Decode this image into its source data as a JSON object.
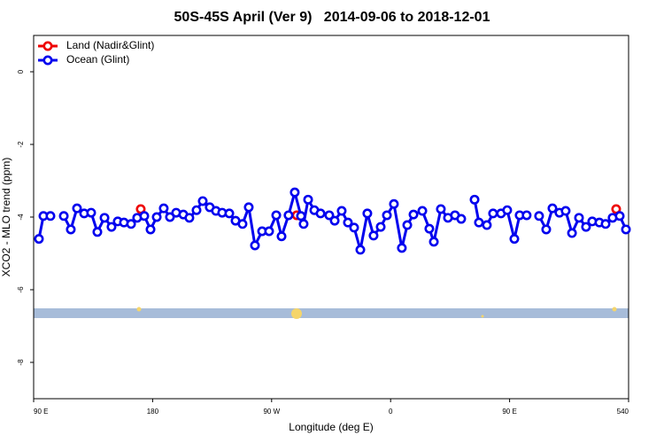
{
  "chart_data": {
    "type": "line",
    "title": "50S-45S April (Ver 9)   2014-09-06 to 2018-12-01",
    "x_label": "Longitude (deg E)",
    "y_label": "XCO2 - MLO trend (ppm)",
    "xlim": [
      90,
      540
    ],
    "ylim": [
      -9,
      1
    ],
    "xticks": [
      {
        "value": 90,
        "label": "90 E"
      },
      180,
      {
        "value": 270,
        "label": "90 W"
      },
      {
        "value": 360,
        "label": "0"
      },
      {
        "value": 450,
        "label": "90 E"
      },
      540
    ],
    "yticks": [
      0,
      -2,
      -4,
      -6,
      -8
    ],
    "legend": "top-left",
    "series": [
      {
        "name": "Land (Nadir&Glint)",
        "color": "#ee0000",
        "x": [
          171,
          230,
          289,
          400,
          530.6
        ],
        "values": [
          -3.78,
          null,
          -3.95,
          null,
          -3.78
        ]
      },
      {
        "name": "Ocean (Glint)",
        "color": "#0000ee",
        "x": [
          94.0,
          97.4,
          102.7,
          107.5,
          112.8,
          118.1,
          122.8,
          128.2,
          133.5,
          138.2,
          143.6,
          148.9,
          153.6,
          158.3,
          163.7,
          168.3,
          173.7,
          178.4,
          183.1,
          188.4,
          193.1,
          197.8,
          203.2,
          207.8,
          213.2,
          217.9,
          223.2,
          227.9,
          232.6,
          238.0,
          242.7,
          248.0,
          252.7,
          257.4,
          262.8,
          268.1,
          273.5,
          277.5,
          282.8,
          287.5,
          292.2,
          294.2,
          297.6,
          302.3,
          307.0,
          313.6,
          317.7,
          323.0,
          327.7,
          332.4,
          337.1,
          342.4,
          347.1,
          352.5,
          357.2,
          362.5,
          368.5,
          372.6,
          377.3,
          384.0,
          389.3,
          392.7,
          398.0,
          403.4,
          408.7,
          413.4,
          418.5,
          423.5,
          426.8,
          432.8,
          437.5,
          443.5,
          448.2,
          453.6,
          457.6,
          462.9,
          467.5,
          472.3,
          477.7,
          482.4,
          487.7,
          492.4,
          497.2,
          502.5,
          507.8,
          512.5,
          517.9,
          522.6,
          527.9,
          533.3,
          538.0
        ],
        "values": [
          -4.6,
          -3.97,
          -3.97,
          null,
          -3.97,
          -4.34,
          -3.76,
          -3.9,
          -3.88,
          -4.41,
          -4.02,
          -4.27,
          -4.12,
          -4.15,
          -4.19,
          -4.02,
          -3.97,
          -4.34,
          -4.0,
          -3.76,
          -4.0,
          -3.88,
          -3.93,
          -4.02,
          -3.81,
          -3.56,
          -3.73,
          -3.83,
          -3.88,
          -3.9,
          -4.1,
          -4.19,
          -3.73,
          -4.78,
          -4.39,
          -4.39,
          -3.95,
          -4.53,
          -3.95,
          -3.32,
          -3.97,
          -4.19,
          -3.52,
          -3.81,
          -3.9,
          -3.95,
          -4.1,
          -3.83,
          -4.15,
          -4.29,
          -4.9,
          -3.9,
          -4.51,
          -4.27,
          -3.95,
          -3.64,
          -4.85,
          -4.22,
          -3.93,
          -3.83,
          -4.32,
          -4.68,
          -3.78,
          -4.02,
          -3.95,
          -4.05,
          null,
          -3.52,
          -4.15,
          -4.22,
          -3.9,
          -3.9,
          -3.81,
          -4.6,
          -3.95,
          -3.95,
          null,
          -3.97,
          -4.34,
          -3.76,
          -3.88,
          -3.83,
          -4.44,
          -4.02,
          -4.27,
          -4.12,
          -4.15,
          -4.19,
          -4.02,
          -3.97,
          -4.34
        ]
      }
    ]
  }
}
